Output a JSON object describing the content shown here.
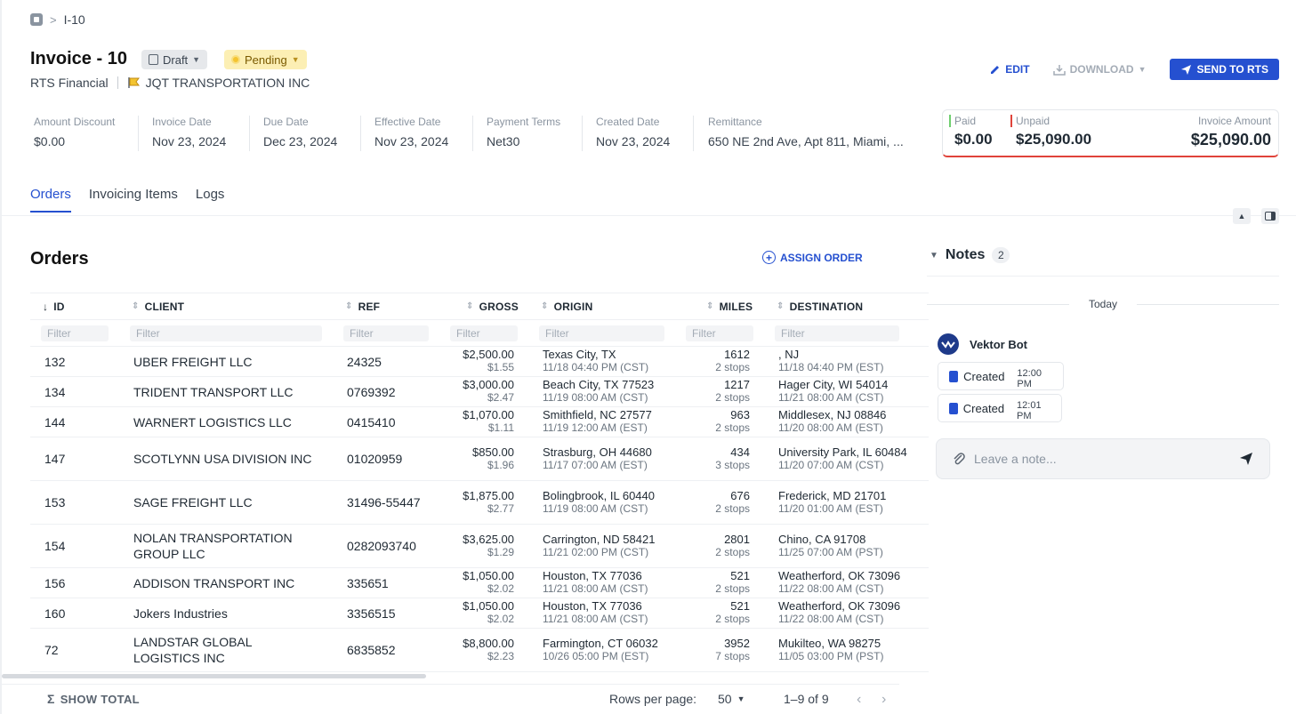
{
  "breadcrumb": {
    "current": "I-10"
  },
  "header": {
    "title": "Invoice - 10",
    "status_badge": "Draft",
    "approval_badge": "Pending",
    "factor": "RTS Financial",
    "carrier": "JQT TRANSPORTATION INC"
  },
  "actions": {
    "edit": "EDIT",
    "download": "DOWNLOAD",
    "send": "SEND TO RTS"
  },
  "info": [
    {
      "label": "Amount Discount",
      "value": "$0.00"
    },
    {
      "label": "Invoice Date",
      "value": "Nov 23, 2024"
    },
    {
      "label": "Due Date",
      "value": "Dec 23, 2024"
    },
    {
      "label": "Effective Date",
      "value": "Nov 23, 2024"
    },
    {
      "label": "Payment Terms",
      "value": "Net30"
    },
    {
      "label": "Created Date",
      "value": "Nov 23, 2024"
    },
    {
      "label": "Remittance",
      "value": "650 NE 2nd Ave, Apt 811, Miami, ..."
    }
  ],
  "payment": {
    "paid_label": "Paid",
    "paid": "$0.00",
    "unpaid_label": "Unpaid",
    "unpaid": "$25,090.00",
    "total_label": "Invoice Amount",
    "total": "$25,090.00"
  },
  "tabs": [
    "Orders",
    "Invoicing Items",
    "Logs"
  ],
  "orders": {
    "title": "Orders",
    "assign": "ASSIGN ORDER",
    "filter_placeholder": "Filter",
    "columns": [
      "ID",
      "CLIENT",
      "REF",
      "GROSS",
      "ORIGIN",
      "MILES",
      "DESTINATION"
    ],
    "rows": [
      {
        "id": "132",
        "client": "UBER FREIGHT LLC",
        "ref": "24325",
        "gross": "$2,500.00",
        "rate": "$1.55",
        "origin": "Texas City, TX",
        "origin_time": "11/18 04:40 PM (CST)",
        "miles": "1612",
        "stops": "2 stops",
        "dest": ", NJ",
        "dest_time": "11/18 04:40 PM (EST)"
      },
      {
        "id": "134",
        "client": "TRIDENT TRANSPORT LLC",
        "ref": "0769392",
        "gross": "$3,000.00",
        "rate": "$2.47",
        "origin": "Beach City, TX 77523",
        "origin_time": "11/19 08:00 AM (CST)",
        "miles": "1217",
        "stops": "2 stops",
        "dest": "Hager City, WI 54014",
        "dest_time": "11/21 08:00 AM (CST)"
      },
      {
        "id": "144",
        "client": "WARNERT LOGISTICS LLC",
        "ref": "0415410",
        "gross": "$1,070.00",
        "rate": "$1.11",
        "origin": "Smithfield, NC 27577",
        "origin_time": "11/19 12:00 AM (EST)",
        "miles": "963",
        "stops": "2 stops",
        "dest": "Middlesex, NJ 08846",
        "dest_time": "11/20 08:00 AM (EST)"
      },
      {
        "id": "147",
        "client": "SCOTLYNN USA DIVISION INC",
        "ref": "01020959",
        "gross": "$850.00",
        "rate": "$1.96",
        "origin": "Strasburg, OH 44680",
        "origin_time": "11/17 07:00 AM (EST)",
        "miles": "434",
        "stops": "3 stops",
        "dest": "University Park, IL 60484",
        "dest_time": "11/20 07:00 AM (CST)"
      },
      {
        "id": "153",
        "client": "SAGE FREIGHT LLC",
        "ref": "31496-55447",
        "gross": "$1,875.00",
        "rate": "$2.77",
        "origin": "Bolingbrook, IL 60440",
        "origin_time": "11/19 08:00 AM (CST)",
        "miles": "676",
        "stops": "2 stops",
        "dest": "Frederick, MD 21701",
        "dest_time": "11/20 01:00 AM (EST)"
      },
      {
        "id": "154",
        "client": "NOLAN TRANSPORTATION GROUP LLC",
        "ref": "0282093740",
        "gross": "$3,625.00",
        "rate": "$1.29",
        "origin": "Carrington, ND 58421",
        "origin_time": "11/21 02:00 PM (CST)",
        "miles": "2801",
        "stops": "2 stops",
        "dest": "Chino, CA 91708",
        "dest_time": "11/25 07:00 AM (PST)"
      },
      {
        "id": "156",
        "client": "ADDISON TRANSPORT INC",
        "ref": "335651",
        "gross": "$1,050.00",
        "rate": "$2.02",
        "origin": "Houston, TX 77036",
        "origin_time": "11/21 08:00 AM (CST)",
        "miles": "521",
        "stops": "2 stops",
        "dest": "Weatherford, OK 73096",
        "dest_time": "11/22 08:00 AM (CST)"
      },
      {
        "id": "160",
        "client": "Jokers Industries",
        "ref": "3356515",
        "gross": "$1,050.00",
        "rate": "$2.02",
        "origin": "Houston, TX 77036",
        "origin_time": "11/21 08:00 AM (CST)",
        "miles": "521",
        "stops": "2 stops",
        "dest": "Weatherford, OK 73096",
        "dest_time": "11/22 08:00 AM (CST)"
      },
      {
        "id": "72",
        "client": "LANDSTAR GLOBAL LOGISTICS INC",
        "ref": "6835852",
        "gross": "$8,800.00",
        "rate": "$2.23",
        "origin": "Farmington, CT 06032",
        "origin_time": "10/26 05:00 PM (EST)",
        "miles": "3952",
        "stops": "7 stops",
        "dest": "Mukilteo, WA 98275",
        "dest_time": "11/05 03:00 PM (PST)"
      }
    ]
  },
  "footer": {
    "show_total": "SHOW TOTAL",
    "rows_label": "Rows per page:",
    "rows_value": "50",
    "range": "1–9 of 9"
  },
  "notes": {
    "title": "Notes",
    "count": "2",
    "day": "Today",
    "author": "Vektor Bot",
    "events": [
      {
        "text": "Created",
        "time": "12:00 PM"
      },
      {
        "text": "Created",
        "time": "12:01 PM"
      }
    ],
    "placeholder": "Leave a note..."
  },
  "colors": {
    "accent": "#2550d0",
    "unpaid": "#e0433a",
    "paid": "#6fcf6f",
    "pending_bg": "#fcefb4"
  }
}
